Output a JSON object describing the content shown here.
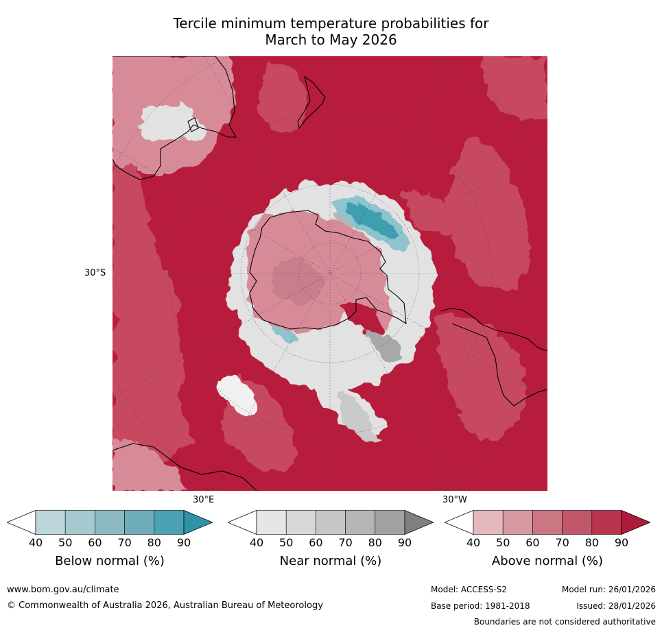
{
  "title_line1": "Tercile minimum temperature probabilities for",
  "title_line2": "March to May 2026",
  "map": {
    "lat_label": "30°S",
    "lon_label_east": "30°E",
    "lon_label_west": "30°W",
    "colors": {
      "ocean_above": "#b71c3c",
      "above_mid": "#c6495e",
      "above_low": "#d78b98",
      "near": "#e2e2e2",
      "near_dark": "#a8a8a8",
      "below": "#3e9fb0",
      "below_light": "#8ec4cd"
    }
  },
  "colorbars": [
    {
      "title": "Below normal (%)",
      "ticks": [
        "40",
        "50",
        "60",
        "70",
        "80",
        "90"
      ],
      "colors": [
        "#ffffff",
        "#bcd6dc",
        "#a6c8cf",
        "#8db9c2",
        "#6fadba",
        "#4aa2b2",
        "#2f93a7"
      ]
    },
    {
      "title": "Near normal (%)",
      "ticks": [
        "40",
        "50",
        "60",
        "70",
        "80",
        "90"
      ],
      "colors": [
        "#ffffff",
        "#e6e6e6",
        "#d7d7d7",
        "#c6c6c6",
        "#b5b5b5",
        "#a2a2a2",
        "#7f7f7f"
      ]
    },
    {
      "title": "Above normal (%)",
      "ticks": [
        "40",
        "50",
        "60",
        "70",
        "80",
        "90"
      ],
      "colors": [
        "#ffffff",
        "#e5b8bd",
        "#d79aa3",
        "#cb7781",
        "#c2576a",
        "#b9354d",
        "#ad1c3c"
      ]
    }
  ],
  "footer": {
    "website": "www.bom.gov.au/climate",
    "copyright": "© Commonwealth of Australia 2026, Australian Bureau of Meteorology",
    "model": "Model: ACCESS-S2",
    "model_run": "Model run: 26/01/2026",
    "base_period": "Base period: 1981-2018",
    "issued": "Issued: 28/01/2026",
    "disclaimer": "Boundaries are not considered authoritative"
  }
}
